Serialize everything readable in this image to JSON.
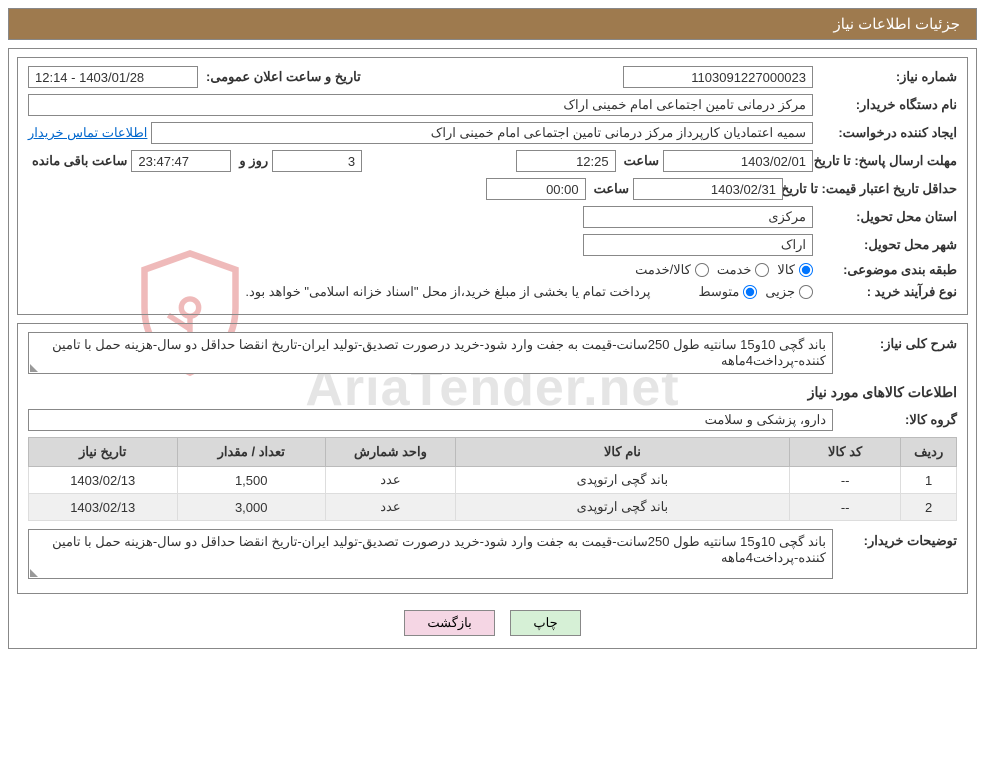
{
  "header": {
    "title": "جزئیات اطلاعات نیاز"
  },
  "watermark": {
    "text": "AriaTender.net"
  },
  "need": {
    "number_label": "شماره نیاز:",
    "number": "1103091227000023",
    "announce_label": "تاریخ و ساعت اعلان عمومی:",
    "announce_value": "12:14 - 1403/01/28",
    "buyer_org_label": "نام دستگاه خریدار:",
    "buyer_org": "مرکز درمانی تامین اجتماعی امام خمینی اراک",
    "requester_label": "ایجاد کننده درخواست:",
    "requester": "سمیه اعتمادیان کارپرداز مرکز درمانی تامین اجتماعی امام خمینی اراک",
    "buyer_contact_link": "اطلاعات تماس خریدار",
    "deadline_label": "مهلت ارسال پاسخ: تا تاریخ:",
    "deadline_date": "1403/02/01",
    "time_label": "ساعت",
    "deadline_time": "12:25",
    "days_value": "3",
    "days_and_label": "روز و",
    "countdown": "23:47:47",
    "remaining_label": "ساعت باقی مانده",
    "min_price_valid_label": "حداقل تاریخ اعتبار قیمت: تا تاریخ:",
    "min_price_valid_date": "1403/02/31",
    "min_price_valid_time": "00:00",
    "delivery_province_label": "استان محل تحویل:",
    "delivery_province": "مرکزی",
    "delivery_city_label": "شهر محل تحویل:",
    "delivery_city": "اراک",
    "subject_class_label": "طبقه بندی موضوعی:",
    "subject_options": {
      "goods": "کالا",
      "service": "خدمت",
      "goods_service": "کالا/خدمت"
    },
    "purchase_type_label": "نوع فرآیند خرید :",
    "purchase_options": {
      "minor": "جزیی",
      "medium": "متوسط"
    },
    "purchase_note": "پرداخت تمام یا بخشی از مبلغ خرید،از محل \"اسناد خزانه اسلامی\" خواهد بود."
  },
  "desc": {
    "title_label": "شرح کلی نیاز:",
    "title_text": "باند گچی 10و15 سانتیه طول 250سانت-قیمت به جفت وارد شود-خرید درصورت تصدیق-تولید ایران-تاریخ انقضا حداقل دو سال-هزینه حمل با تامین کننده-پرداخت4ماهه",
    "items_heading": "اطلاعات کالاهای مورد نیاز",
    "group_label": "گروه کالا:",
    "group_value": "دارو، پزشکی و سلامت"
  },
  "table": {
    "columns": [
      "ردیف",
      "کد کالا",
      "نام کالا",
      "واحد شمارش",
      "تعداد / مقدار",
      "تاریخ نیاز"
    ],
    "col_widths": [
      "6%",
      "12%",
      "36%",
      "14%",
      "16%",
      "16%"
    ],
    "rows": [
      [
        "1",
        "--",
        "باند گچی ارتوپدی",
        "عدد",
        "1,500",
        "1403/02/13"
      ],
      [
        "2",
        "--",
        "باند گچی ارتوپدی",
        "عدد",
        "3,000",
        "1403/02/13"
      ]
    ]
  },
  "buyer_notes": {
    "label": "توضیحات خریدار:",
    "text": "باند گچی 10و15 سانتیه طول 250سانت-قیمت به جفت وارد شود-خرید درصورت تصدیق-تولید ایران-تاریخ انقضا حداقل دو سال-هزینه حمل با تامین کننده-پرداخت4ماهه"
  },
  "buttons": {
    "print": "چاپ",
    "back": "بازگشت"
  },
  "colors": {
    "header_bg": "#9e7a4e",
    "header_text": "#ffffff",
    "border": "#888888",
    "th_bg": "#d9d9d9",
    "row_alt": "#f0f0f0",
    "link": "#0066cc",
    "btn_print": "#d6f0d6",
    "btn_back": "#f5d6e4",
    "watermark": "rgba(180,180,180,0.35)",
    "shield_stroke": "#d23b3b"
  }
}
